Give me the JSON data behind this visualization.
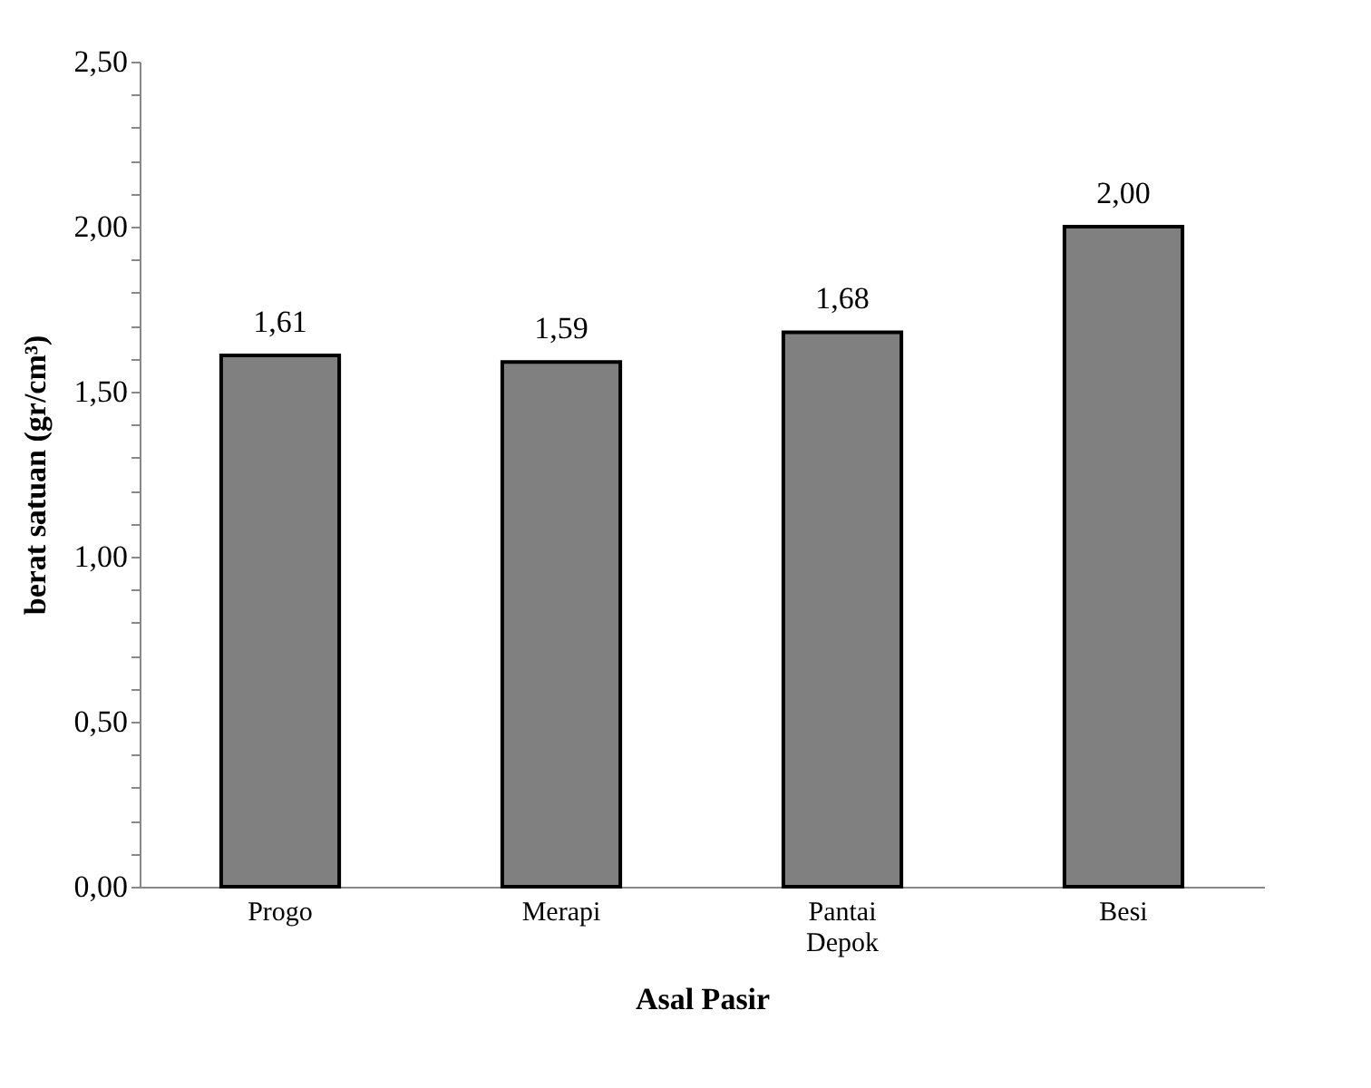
{
  "chart_data": {
    "type": "bar",
    "xlabel": "Asal Pasir",
    "ylabel": "berat satuan (gr/cm³)",
    "categories": [
      "Progo",
      "Merapi",
      "Pantai Depok",
      "Besi"
    ],
    "values": [
      1.61,
      1.59,
      1.68,
      2.0
    ],
    "value_labels": [
      "1,61",
      "1,59",
      "1,68",
      "2,00"
    ],
    "colors": [
      "#808080",
      "#808080",
      "#808080",
      "#808080"
    ],
    "ylim": [
      0,
      2.5
    ],
    "yticks": [
      {
        "value": 0,
        "label": "0,00"
      },
      {
        "value": 0.1,
        "label": null
      },
      {
        "value": 0.2,
        "label": null
      },
      {
        "value": 0.3,
        "label": null
      },
      {
        "value": 0.4,
        "label": null
      },
      {
        "value": 0.5,
        "label": "0,50"
      },
      {
        "value": 0.6,
        "label": null
      },
      {
        "value": 0.7,
        "label": null
      },
      {
        "value": 0.8,
        "label": null
      },
      {
        "value": 0.9,
        "label": null
      },
      {
        "value": 1,
        "label": "1,00"
      },
      {
        "value": 1.1,
        "label": null
      },
      {
        "value": 1.2,
        "label": null
      },
      {
        "value": 1.3,
        "label": null
      },
      {
        "value": 1.4,
        "label": null
      },
      {
        "value": 1.5,
        "label": "1,50"
      },
      {
        "value": 1.6,
        "label": null
      },
      {
        "value": 1.7,
        "label": null
      },
      {
        "value": 1.8,
        "label": null
      },
      {
        "value": 1.9,
        "label": null
      },
      {
        "value": 2,
        "label": "2,00"
      },
      {
        "value": 2.1,
        "label": null
      },
      {
        "value": 2.2,
        "label": null
      },
      {
        "value": 2.3,
        "label": null
      },
      {
        "value": 2.4,
        "label": null
      },
      {
        "value": 2.5,
        "label": "2,50"
      }
    ],
    "grid": false
  }
}
